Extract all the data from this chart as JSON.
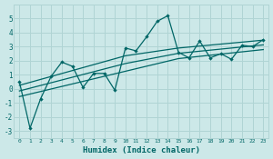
{
  "xlabel": "Humidex (Indice chaleur)",
  "ylabel": "",
  "bg_color": "#cce8e8",
  "grid_color": "#b0d4d4",
  "line_color": "#006666",
  "x_data": [
    0,
    1,
    2,
    3,
    4,
    5,
    6,
    7,
    8,
    9,
    10,
    11,
    12,
    13,
    14,
    15,
    16,
    17,
    18,
    19,
    20,
    21,
    22,
    23
  ],
  "y_main": [
    0.5,
    -2.8,
    -0.7,
    0.9,
    1.9,
    1.6,
    0.1,
    1.1,
    1.1,
    -0.1,
    2.9,
    2.7,
    3.7,
    4.8,
    5.2,
    2.6,
    2.2,
    3.4,
    2.2,
    2.5,
    2.1,
    3.1,
    3.0,
    3.5
  ],
  "band_lower": [
    -0.55,
    -0.37,
    -0.19,
    -0.01,
    0.17,
    0.35,
    0.53,
    0.71,
    0.89,
    1.07,
    1.25,
    1.43,
    1.61,
    1.79,
    1.97,
    2.15,
    2.23,
    2.31,
    2.39,
    2.47,
    2.55,
    2.63,
    2.71,
    2.79
  ],
  "band_upper": [
    0.25,
    0.46,
    0.67,
    0.88,
    1.09,
    1.3,
    1.51,
    1.72,
    1.93,
    2.14,
    2.35,
    2.46,
    2.57,
    2.68,
    2.79,
    2.9,
    2.97,
    3.04,
    3.11,
    3.18,
    3.25,
    3.32,
    3.39,
    3.46
  ],
  "band_mid": [
    -0.15,
    0.045,
    0.24,
    0.435,
    0.63,
    0.825,
    1.02,
    1.215,
    1.41,
    1.605,
    1.8,
    1.945,
    2.09,
    2.235,
    2.38,
    2.525,
    2.6,
    2.675,
    2.75,
    2.825,
    2.9,
    2.975,
    3.05,
    3.125
  ],
  "ylim": [
    -3.5,
    6.0
  ],
  "xlim": [
    -0.5,
    23.5
  ],
  "yticks": [
    -3,
    -2,
    -1,
    0,
    1,
    2,
    3,
    4,
    5
  ]
}
